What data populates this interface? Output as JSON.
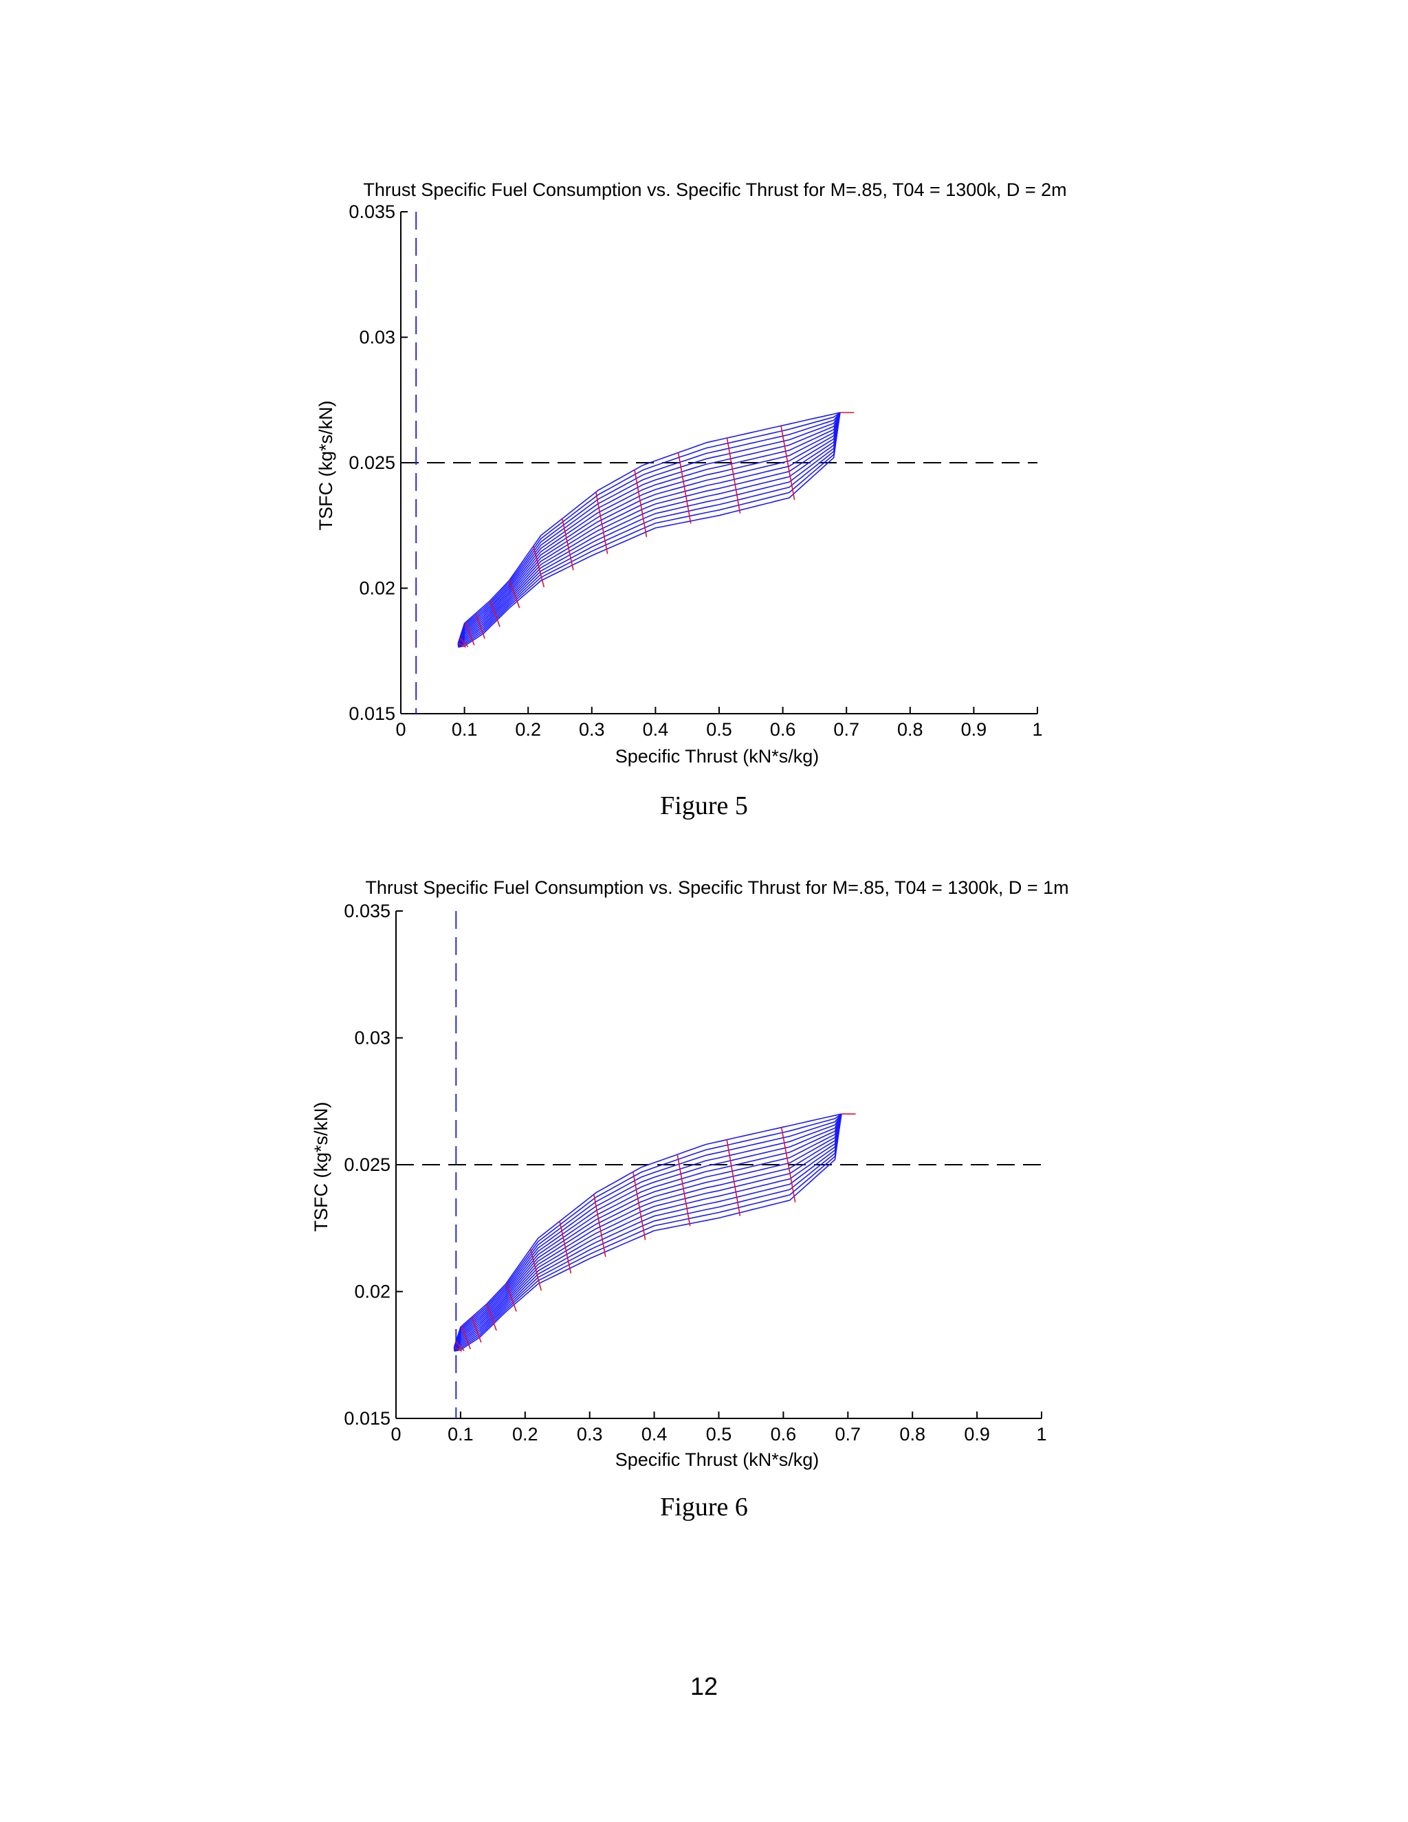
{
  "page_number": "12",
  "chart_data": [
    {
      "type": "line",
      "caption": "Figure 5",
      "title": "Thrust Specific Fuel Consumption vs. Specific Thrust for M=.85, T04 = 1300k, D = 2m",
      "xlabel": "Specific Thrust (kN*s/kg)",
      "ylabel": "TSFC (kg*s/kN)",
      "xlim": [
        0,
        1
      ],
      "ylim": [
        0.015,
        0.035
      ],
      "xticks": [
        "0",
        "0.1",
        "0.2",
        "0.3",
        "0.4",
        "0.5",
        "0.6",
        "0.7",
        "0.8",
        "0.9",
        "1"
      ],
      "yticks": [
        "0.015",
        "0.02",
        "0.025",
        "0.03",
        "0.035"
      ],
      "reference_lines": [
        {
          "orientation": "horizontal",
          "value": 0.025,
          "style": "dashed",
          "color": "#000000"
        },
        {
          "orientation": "vertical",
          "value": 0.024,
          "style": "dashed",
          "color": "#2a2ad0"
        }
      ],
      "carpet": {
        "colors": {
          "blue": "#1a1aff",
          "red": "#e0102a"
        },
        "top_envelope": [
          [
            0.09,
            0.0178
          ],
          [
            0.1,
            0.0186
          ],
          [
            0.14,
            0.0195
          ],
          [
            0.17,
            0.0203
          ],
          [
            0.22,
            0.0221
          ],
          [
            0.27,
            0.0231
          ],
          [
            0.31,
            0.0239
          ],
          [
            0.38,
            0.0249
          ],
          [
            0.48,
            0.0258
          ],
          [
            0.69,
            0.027
          ]
        ],
        "bottom_envelope": [
          [
            0.08,
            0.0176
          ],
          [
            0.1,
            0.0177
          ],
          [
            0.13,
            0.0182
          ],
          [
            0.17,
            0.0192
          ],
          [
            0.22,
            0.0203
          ],
          [
            0.3,
            0.0213
          ],
          [
            0.4,
            0.0224
          ],
          [
            0.5,
            0.0229
          ],
          [
            0.61,
            0.0236
          ],
          [
            0.68,
            0.0252
          ],
          [
            0.69,
            0.027
          ]
        ],
        "blue_curve_count": 15,
        "red_curve_count": 14
      }
    },
    {
      "type": "line",
      "caption": "Figure 6",
      "title": "Thrust Specific Fuel Consumption vs. Specific Thrust for M=.85, T04 = 1300k, D = 1m",
      "xlabel": "Specific Thrust (kN*s/kg)",
      "ylabel": "TSFC (kg*s/kN)",
      "xlim": [
        0,
        1
      ],
      "ylim": [
        0.015,
        0.035
      ],
      "xticks": [
        "0",
        "0.1",
        "0.2",
        "0.3",
        "0.4",
        "0.5",
        "0.6",
        "0.7",
        "0.8",
        "0.9",
        "1"
      ],
      "yticks": [
        "0.015",
        "0.02",
        "0.025",
        "0.03",
        "0.035"
      ],
      "reference_lines": [
        {
          "orientation": "horizontal",
          "value": 0.025,
          "style": "dashed",
          "color": "#000000"
        },
        {
          "orientation": "vertical",
          "value": 0.093,
          "style": "dashed",
          "color": "#2a2ad0"
        }
      ],
      "carpet": {
        "colors": {
          "blue": "#1a1aff",
          "red": "#e0102a"
        },
        "top_envelope": [
          [
            0.09,
            0.0178
          ],
          [
            0.1,
            0.0186
          ],
          [
            0.14,
            0.0195
          ],
          [
            0.17,
            0.0203
          ],
          [
            0.22,
            0.0221
          ],
          [
            0.27,
            0.0231
          ],
          [
            0.31,
            0.0239
          ],
          [
            0.38,
            0.0249
          ],
          [
            0.48,
            0.0258
          ],
          [
            0.69,
            0.027
          ]
        ],
        "bottom_envelope": [
          [
            0.08,
            0.0176
          ],
          [
            0.1,
            0.0177
          ],
          [
            0.13,
            0.0182
          ],
          [
            0.17,
            0.0192
          ],
          [
            0.22,
            0.0203
          ],
          [
            0.3,
            0.0213
          ],
          [
            0.4,
            0.0224
          ],
          [
            0.5,
            0.0229
          ],
          [
            0.61,
            0.0236
          ],
          [
            0.68,
            0.0252
          ],
          [
            0.69,
            0.027
          ]
        ],
        "blue_curve_count": 15,
        "red_curve_count": 14
      }
    }
  ]
}
